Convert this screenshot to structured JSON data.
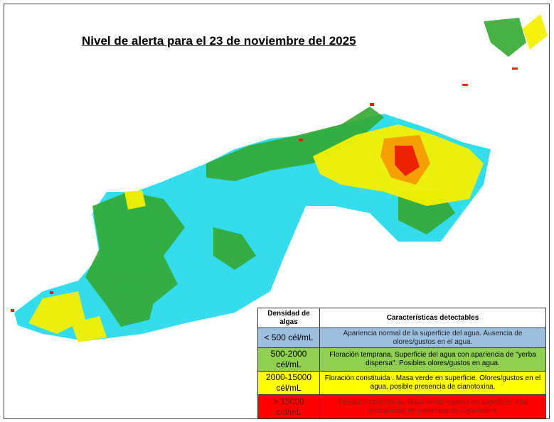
{
  "title": "Nivel de alerta para el 23 de noviembre del 2025",
  "legend": {
    "header": {
      "density": "Densidad de algas",
      "features": "Características detectables"
    },
    "rows": [
      {
        "density": "< 500 cél/mL",
        "features": "Apariencia normal de la superficie del agua. Ausencia de olores/gustos en el agua.",
        "color": "#9cbfe0",
        "text_color": "#222"
      },
      {
        "density": "500-2000 cél/mL",
        "features": "Floración temprana. Superficie del agua con apariencia de \"yerba dispersa\". Posibles olores/gustos en agua.",
        "color": "#8fd14f",
        "text_color": "#111"
      },
      {
        "density": "2000-15000 cél/mL",
        "features": "Floración constituida . Masa verde en superficie. Olores/gustos en el agua, posible presencia de cianotoxina.",
        "color": "#ffff00",
        "text_color": "#111"
      },
      {
        "density": "> 15000 cél/mL",
        "features": "Floración constituida. Masa verde espesa en superficie. Alta probabilidad de presencia de cianotoxina.",
        "color": "#ff0000",
        "text_color": "#8b1a1a"
      }
    ]
  },
  "map_colors": {
    "low": "#33ddee",
    "mid": "#33a832",
    "high": "#f4ef00",
    "alert": "#ee2200",
    "orange": "#f5a000"
  }
}
